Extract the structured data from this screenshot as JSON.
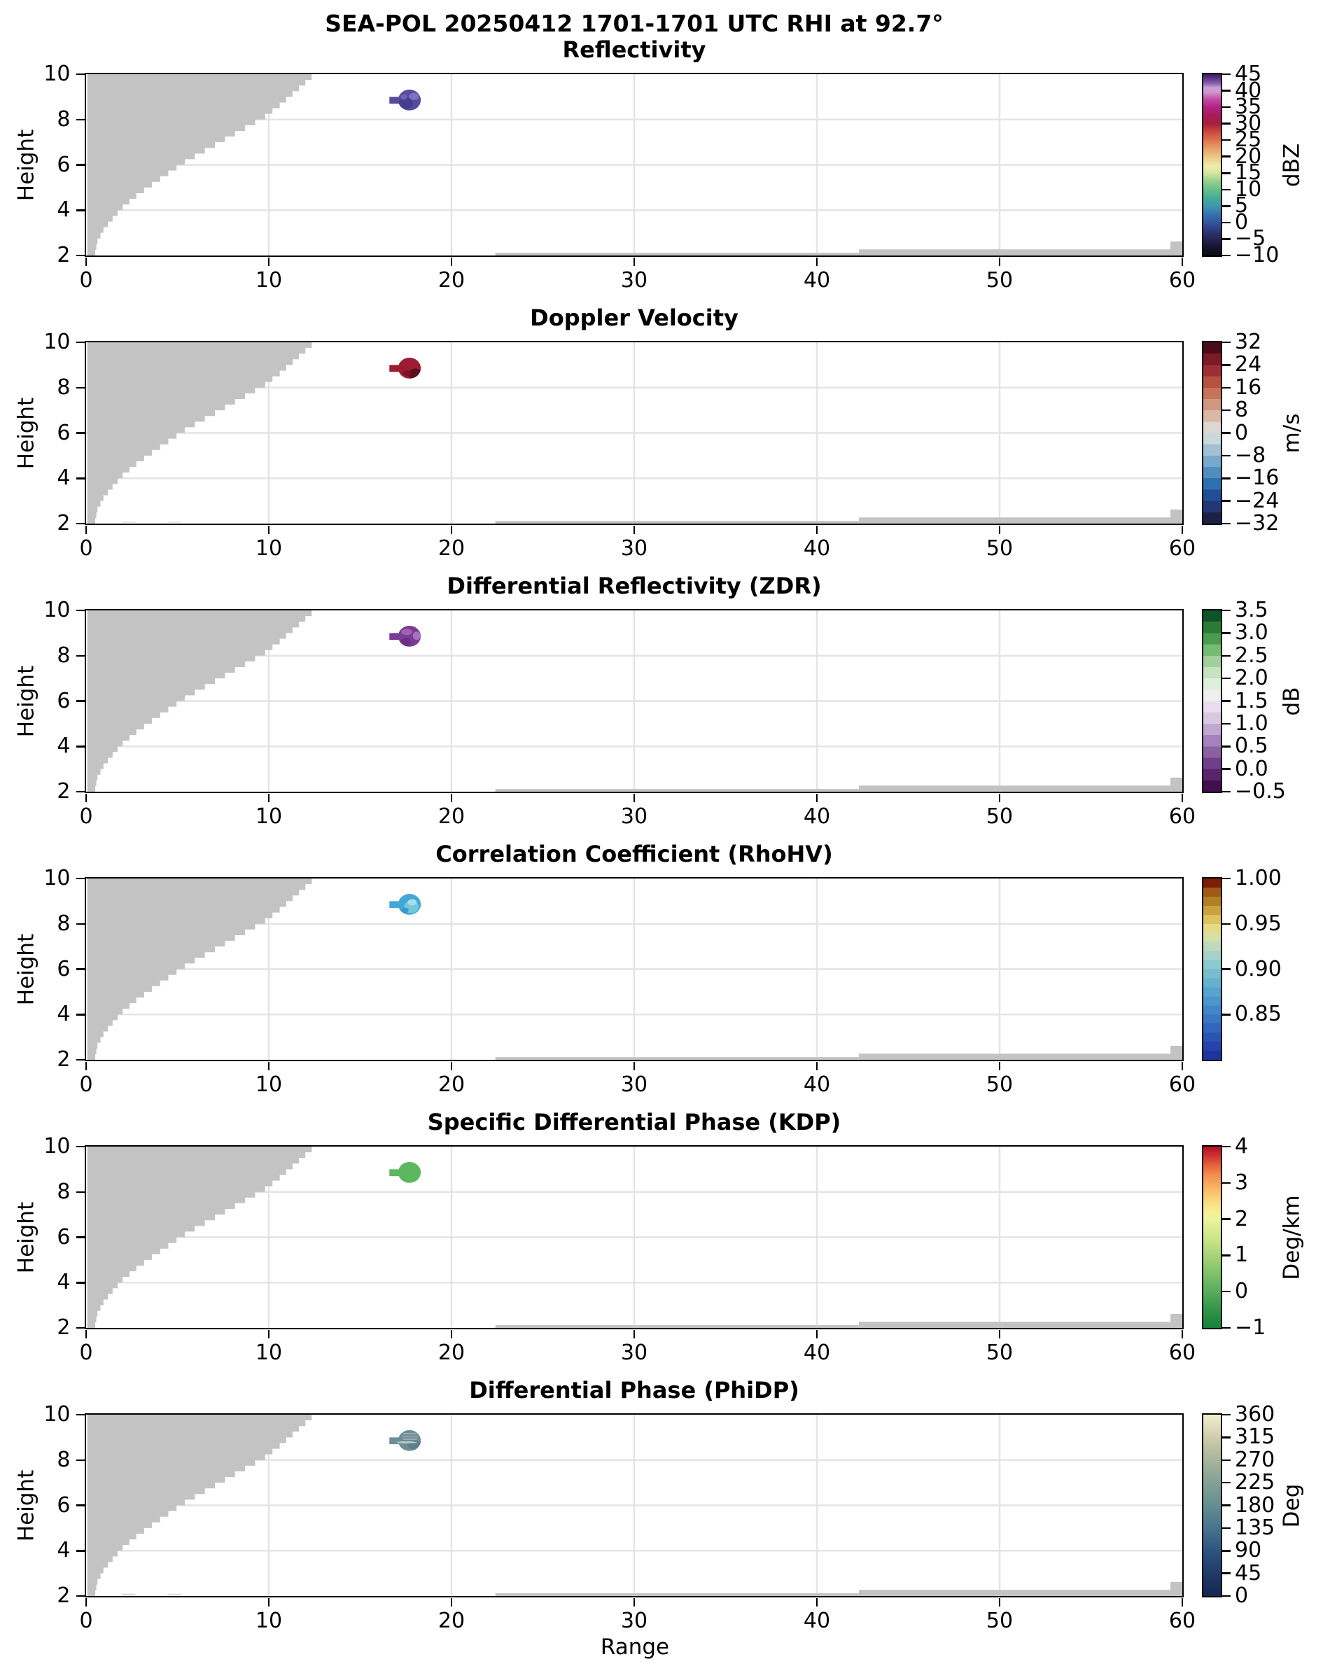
{
  "figure": {
    "suptitle": "SEA-POL 20250412 1701-1701 UTC RHI at 92.7°",
    "xlabel": "Range",
    "ylabel": "Height"
  },
  "chart_data": {
    "type": "heatmap",
    "description": "Six stacked RHI radar cross-section panels sharing Range (x) and Height (y) axes, each with its own colorbar. A single small echo blob near range 17.6, height 8.9. Gray regions mark un-scanned/blocked areas.",
    "title": "SEA-POL 20250412 1701-1701 UTC RHI at 92.7°",
    "xlabel": "Range",
    "ylabel": "Height",
    "xlim": [
      0,
      60
    ],
    "ylim": [
      2,
      10
    ],
    "xticks": [
      {
        "v": 0,
        "label": "0"
      },
      {
        "v": 10,
        "label": "10"
      },
      {
        "v": 20,
        "label": "20"
      },
      {
        "v": 30,
        "label": "30"
      },
      {
        "v": 40,
        "label": "40"
      },
      {
        "v": 50,
        "label": "50"
      },
      {
        "v": 60,
        "label": "60"
      }
    ],
    "yticks": [
      {
        "v": 2,
        "label": "2"
      },
      {
        "v": 4,
        "label": "4"
      },
      {
        "v": 6,
        "label": "6"
      },
      {
        "v": 8,
        "label": "8"
      },
      {
        "v": 10,
        "label": "10"
      }
    ],
    "grid_x": [
      10,
      20,
      30,
      40,
      50
    ],
    "grid_y": [
      4,
      6,
      8
    ],
    "grid_color": "#e4e4e4",
    "mask_color": "#c3c3c3",
    "blocked_region_profile": [
      [
        0.5,
        2.0
      ],
      [
        0.62,
        2.5
      ],
      [
        0.95,
        3.0
      ],
      [
        1.45,
        3.5
      ],
      [
        2.0,
        4.0
      ],
      [
        2.75,
        4.5
      ],
      [
        3.6,
        5.0
      ],
      [
        4.5,
        5.5
      ],
      [
        5.4,
        6.0
      ],
      [
        6.5,
        6.5
      ],
      [
        7.6,
        7.0
      ],
      [
        8.7,
        7.5
      ],
      [
        9.8,
        8.0
      ],
      [
        10.6,
        8.5
      ],
      [
        11.3,
        9.0
      ],
      [
        12.0,
        9.5
      ],
      [
        12.7,
        10.0
      ]
    ],
    "ground_strip": [
      [
        22.4,
        2.12
      ],
      [
        42.3,
        2.27
      ],
      [
        59.35,
        2.62
      ]
    ],
    "echo_geometry": {
      "cx": 17.7,
      "cy": 8.86,
      "rx": 0.62,
      "ry": 0.46,
      "stem": {
        "x": 16.6,
        "top": 9.0,
        "w": 0.65,
        "hh": 0.3
      },
      "range_extent": [
        16.6,
        18.32
      ],
      "height_extent": [
        8.4,
        9.32
      ]
    },
    "panels": [
      {
        "title": "Reflectivity",
        "unit": "dBZ",
        "cbar": {
          "vmin": -10,
          "vmax": 45,
          "ticks": [
            {
              "value": 45,
              "label": "45"
            },
            {
              "value": 40,
              "label": "40"
            },
            {
              "value": 35,
              "label": "35"
            },
            {
              "value": 30,
              "label": "30"
            },
            {
              "value": 25,
              "label": "25"
            },
            {
              "value": 20,
              "label": "20"
            },
            {
              "value": 15,
              "label": "15"
            },
            {
              "value": 10,
              "label": "10"
            },
            {
              "value": 5,
              "label": "5"
            },
            {
              "value": 0,
              "label": "0"
            },
            {
              "value": -5,
              "label": "−5"
            },
            {
              "value": -10,
              "label": "−10"
            }
          ],
          "gradient": {
            "stops": [
              [
                0,
                "#0b0b10"
              ],
              [
                0.05,
                "#171531"
              ],
              [
                0.09,
                "#262454"
              ],
              [
                0.145,
                "#2e3e7e"
              ],
              [
                0.18,
                "#31549e"
              ],
              [
                0.23,
                "#3a74b2"
              ],
              [
                0.27,
                "#3f96ad"
              ],
              [
                0.32,
                "#46ad97"
              ],
              [
                0.36,
                "#62bf8a"
              ],
              [
                0.41,
                "#97d08e"
              ],
              [
                0.45,
                "#cfe49c"
              ],
              [
                0.49,
                "#efeead"
              ],
              [
                0.545,
                "#ecc883"
              ],
              [
                0.59,
                "#e7a065"
              ],
              [
                0.635,
                "#dd7550"
              ],
              [
                0.68,
                "#cd4a3d"
              ],
              [
                0.725,
                "#a81f3e"
              ],
              [
                0.775,
                "#a51d5c"
              ],
              [
                0.82,
                "#b52186"
              ],
              [
                0.865,
                "#c551a8"
              ],
              [
                0.9,
                "#d194cc"
              ],
              [
                0.925,
                "#c9a3d4"
              ],
              [
                0.95,
                "#8a5cae"
              ],
              [
                1,
                "#39175c"
              ]
            ]
          }
        },
        "echo": {
          "approx_value": "≈44 dBZ",
          "base": "#564c9e",
          "patches": [
            {
              "shape": "ellipse",
              "cx": 17.5,
              "cy": 8.72,
              "rx": 0.4,
              "ry": 0.26,
              "fill": "#473d90"
            },
            {
              "shape": "ellipse",
              "cx": 17.95,
              "cy": 9.02,
              "rx": 0.28,
              "ry": 0.16,
              "fill": "#7b72bd"
            },
            {
              "shape": "ellipse",
              "cx": 17.4,
              "cy": 9.0,
              "rx": 0.18,
              "ry": 0.12,
              "fill": "#6c63b2"
            }
          ]
        },
        "artifacts": []
      },
      {
        "title": "Doppler Velocity",
        "unit": "m/s",
        "cbar": {
          "vmin": -32,
          "vmax": 32,
          "ticks": [
            {
              "value": 32,
              "label": "32"
            },
            {
              "value": 24,
              "label": "24"
            },
            {
              "value": 16,
              "label": "16"
            },
            {
              "value": 8,
              "label": "8"
            },
            {
              "value": 0,
              "label": "0"
            },
            {
              "value": -8,
              "label": "−8"
            },
            {
              "value": -16,
              "label": "−16"
            },
            {
              "value": -24,
              "label": "−24"
            },
            {
              "value": -32,
              "label": "−32"
            }
          ],
          "gradient": {
            "segments": [
              "#1f2048",
              "#233775",
              "#1f4f94",
              "#2e6fae",
              "#4f8dc0",
              "#78a8cc",
              "#a2c2d4",
              "#cbd8da",
              "#dcd7d3",
              "#d9b8a6",
              "#d0977e",
              "#c57458",
              "#b45140",
              "#9c2f33",
              "#7c1a28",
              "#4a0c19"
            ]
          }
        },
        "echo": {
          "approx_value": "≈26 m/s",
          "base": "#9e1c31",
          "patches": [
            {
              "shape": "ellipse",
              "cx": 18.02,
              "cy": 8.6,
              "rx": 0.4,
              "ry": 0.24,
              "fill": "#5a0f21"
            },
            {
              "shape": "ellipse",
              "cx": 17.55,
              "cy": 8.64,
              "rx": 0.22,
              "ry": 0.12,
              "fill": "#7c1428"
            }
          ]
        },
        "artifacts": [
          {
            "x": 1.95,
            "w": 0.75,
            "h": 2.1,
            "hh": 0.06,
            "fill": "#e9e9e9"
          },
          {
            "x": 4.45,
            "w": 0.75,
            "h": 2.1,
            "hh": 0.06,
            "fill": "#ededed"
          }
        ]
      },
      {
        "title": "Differential Reflectivity (ZDR)",
        "unit": "dB",
        "cbar": {
          "vmin": -0.5,
          "vmax": 3.5,
          "ticks": [
            {
              "value": 3.5,
              "label": "3.5"
            },
            {
              "value": 3.0,
              "label": "3.0"
            },
            {
              "value": 2.5,
              "label": "2.5"
            },
            {
              "value": 2.0,
              "label": "2.0"
            },
            {
              "value": 1.5,
              "label": "1.5"
            },
            {
              "value": 1.0,
              "label": "1.0"
            },
            {
              "value": 0.5,
              "label": "0.5"
            },
            {
              "value": 0.0,
              "label": "0.0"
            },
            {
              "value": -0.5,
              "label": "−0.5"
            }
          ],
          "gradient": {
            "segments": [
              "#40104c",
              "#58246c",
              "#6f3e8c",
              "#8960a2",
              "#a483bc",
              "#c1a8d1",
              "#d8c8e0",
              "#eadded",
              "#f1eef0",
              "#e0eedd",
              "#c5e3be",
              "#a0d19a",
              "#76bb74",
              "#4c9c50",
              "#2a7b35",
              "#0e5429"
            ]
          }
        },
        "echo": {
          "approx_value": "≈0.1 dB",
          "base": "#7a3b95",
          "patches": [
            {
              "shape": "ellipse",
              "cx": 17.55,
              "cy": 9.05,
              "rx": 0.3,
              "ry": 0.14,
              "fill": "#9a64b0"
            },
            {
              "shape": "ellipse",
              "cx": 18.1,
              "cy": 8.88,
              "rx": 0.22,
              "ry": 0.18,
              "fill": "#a873ba"
            },
            {
              "shape": "ellipse",
              "cx": 17.5,
              "cy": 8.6,
              "rx": 0.3,
              "ry": 0.18,
              "fill": "#6b2f87"
            }
          ]
        },
        "artifacts": []
      },
      {
        "title": "Correlation Coefficient (RhoHV)",
        "unit": null,
        "cbar": {
          "vmin": 0.8,
          "vmax": 1.0,
          "ticks": [
            {
              "value": 1.0,
              "label": "1.00"
            },
            {
              "value": 0.95,
              "label": "0.95"
            },
            {
              "value": 0.9,
              "label": "0.90"
            },
            {
              "value": 0.85,
              "label": "0.85"
            }
          ],
          "gradient": {
            "segments": [
              "#20349f",
              "#2544ab",
              "#2a55b4",
              "#3166bc",
              "#3877c2",
              "#4187c8",
              "#4b96cc",
              "#57a4ce",
              "#66b1cf",
              "#78bdce",
              "#8dc8cc",
              "#a5d2c8",
              "#bedabd",
              "#d6dfa5",
              "#e6db85",
              "#dec260",
              "#cba23e",
              "#b17f24",
              "#9d5b16",
              "#7c1d06"
            ]
          }
        },
        "echo": {
          "approx_value": "≈0.90",
          "base": "#41a9d3",
          "patches": [
            {
              "shape": "ellipse",
              "cx": 17.8,
              "cy": 8.75,
              "rx": 0.4,
              "ry": 0.28,
              "fill": "#74c8de"
            },
            {
              "shape": "ellipse",
              "cx": 17.85,
              "cy": 8.95,
              "rx": 0.25,
              "ry": 0.14,
              "fill": "#a5dfe9"
            },
            {
              "shape": "ellipse",
              "cx": 17.45,
              "cy": 8.6,
              "rx": 0.2,
              "ry": 0.12,
              "fill": "#379ccc"
            }
          ]
        },
        "artifacts": []
      },
      {
        "title": "Specific Differential Phase (KDP)",
        "unit": "Deg/km",
        "cbar": {
          "vmin": -1,
          "vmax": 4,
          "ticks": [
            {
              "value": 4,
              "label": "4"
            },
            {
              "value": 3,
              "label": "3"
            },
            {
              "value": 2,
              "label": "2"
            },
            {
              "value": 1,
              "label": "1"
            },
            {
              "value": 0,
              "label": "0"
            },
            {
              "value": -1,
              "label": "−1"
            }
          ],
          "gradient": {
            "stops": [
              [
                0,
                "#15803c"
              ],
              [
                0.1,
                "#339447"
              ],
              [
                0.2,
                "#58ad5c"
              ],
              [
                0.3,
                "#80c169"
              ],
              [
                0.4,
                "#a8d477"
              ],
              [
                0.5,
                "#cfe689"
              ],
              [
                0.6,
                "#eef29e"
              ],
              [
                0.65,
                "#f7ec93"
              ],
              [
                0.7,
                "#fbd97d"
              ],
              [
                0.78,
                "#f9b160"
              ],
              [
                0.85,
                "#f28a4d"
              ],
              [
                0.9,
                "#e55f3c"
              ],
              [
                0.95,
                "#cf3030"
              ],
              [
                1,
                "#b01227"
              ]
            ]
          }
        },
        "echo": {
          "approx_value": "≈0 Deg/km",
          "base": "#5cb761",
          "patches": []
        },
        "artifacts": []
      },
      {
        "title": "Differential Phase (PhiDP)",
        "unit": "Deg",
        "cbar": {
          "vmin": 0,
          "vmax": 360,
          "ticks": [
            {
              "value": 360,
              "label": "360"
            },
            {
              "value": 315,
              "label": "315"
            },
            {
              "value": 270,
              "label": "270"
            },
            {
              "value": 225,
              "label": "225"
            },
            {
              "value": 180,
              "label": "180"
            },
            {
              "value": 135,
              "label": "135"
            },
            {
              "value": 90,
              "label": "90"
            },
            {
              "value": 45,
              "label": "45"
            },
            {
              "value": 0,
              "label": "0"
            }
          ],
          "gradient": {
            "stops": [
              [
                0,
                "#16274e"
              ],
              [
                0.125,
                "#1f3a68"
              ],
              [
                0.25,
                "#2d5480"
              ],
              [
                0.375,
                "#47748e"
              ],
              [
                0.5,
                "#648e93"
              ],
              [
                0.625,
                "#84a193"
              ],
              [
                0.75,
                "#a8b59a"
              ],
              [
                0.875,
                "#cfcdab"
              ],
              [
                1,
                "#f2efcf"
              ]
            ]
          }
        },
        "echo": {
          "approx_value": "≈185 Deg",
          "base": "#6d8e95",
          "patches": [
            {
              "shape": "rect",
              "x": 17.35,
              "w": 0.75,
              "h": 9.2,
              "hh": 0.07,
              "fill": "#93abaf"
            },
            {
              "shape": "rect",
              "x": 17.3,
              "w": 0.85,
              "h": 9.06,
              "hh": 0.06,
              "fill": "#8aa3a8"
            },
            {
              "shape": "rect",
              "x": 17.35,
              "w": 0.75,
              "h": 8.94,
              "hh": 0.05,
              "fill": "#9db3b6"
            },
            {
              "shape": "ellipse",
              "cx": 18.0,
              "cy": 8.66,
              "rx": 0.4,
              "ry": 0.2,
              "fill": "#5d7f87"
            },
            {
              "shape": "ellipse",
              "cx": 17.55,
              "cy": 8.78,
              "rx": 0.55,
              "ry": 0.05,
              "fill": "#b7c7c8"
            }
          ]
        },
        "artifacts": [
          {
            "x": 1.95,
            "w": 0.75,
            "h": 2.1,
            "hh": 0.06,
            "fill": "#c8d6da"
          },
          {
            "x": 4.45,
            "w": 0.75,
            "h": 2.1,
            "hh": 0.06,
            "fill": "#d2dde0"
          }
        ]
      }
    ]
  }
}
